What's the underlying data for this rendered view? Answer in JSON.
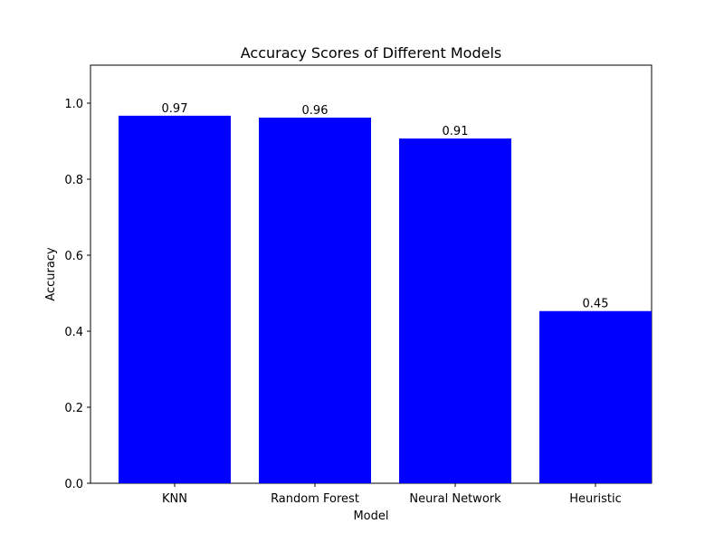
{
  "chart_data": {
    "type": "bar",
    "title": "Accuracy Scores of Different Models",
    "xlabel": "Model",
    "ylabel": "Accuracy",
    "categories": [
      "KNN",
      "Random Forest",
      "Neural Network",
      "Heuristic"
    ],
    "values": [
      0.967,
      0.962,
      0.907,
      0.453
    ],
    "value_labels": [
      "0.97",
      "0.96",
      "0.91",
      "0.45"
    ],
    "ylim": [
      0,
      1.1
    ],
    "yticks": [
      0.0,
      0.2,
      0.4,
      0.6,
      0.8,
      1.0
    ],
    "ytick_labels": [
      "0.0",
      "0.2",
      "0.4",
      "0.6",
      "0.8",
      "1.0"
    ],
    "bar_color": "#0000ff",
    "grid": false,
    "legend": "none"
  }
}
